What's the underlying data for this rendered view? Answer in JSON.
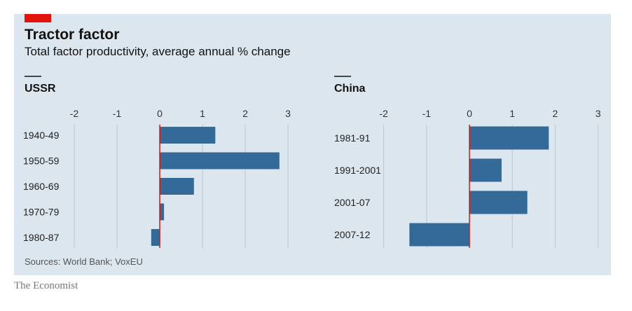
{
  "header": {
    "title": "Tractor factor",
    "subtitle": "Total factor productivity, average annual % change"
  },
  "source": "Sources: World Bank; VoxEU",
  "publisher": "The Economist",
  "colors": {
    "background": "#dbe6ee",
    "bar": "#336a98",
    "zero_line": "#e3120b",
    "grid": "#b8c7d3",
    "accent_tag": "#e3120b"
  },
  "chart_data": [
    {
      "type": "bar",
      "orientation": "horizontal",
      "title": "USSR",
      "categories": [
        "1940-49",
        "1950-59",
        "1960-69",
        "1970-79",
        "1980-87"
      ],
      "values": [
        1.3,
        2.8,
        0.8,
        0.1,
        -0.2
      ],
      "xlim": [
        -2,
        3
      ],
      "xticks": [
        "-2",
        "-1",
        "0",
        "1",
        "2",
        "3"
      ],
      "grid": true
    },
    {
      "type": "bar",
      "orientation": "horizontal",
      "title": "China",
      "categories": [
        "1981-91",
        "1991-2001",
        "2001-07",
        "2007-12"
      ],
      "values": [
        1.85,
        0.75,
        1.35,
        -1.4
      ],
      "xlim": [
        -2,
        3
      ],
      "xticks": [
        "-2",
        "-1",
        "0",
        "1",
        "2",
        "3"
      ],
      "grid": true
    }
  ]
}
